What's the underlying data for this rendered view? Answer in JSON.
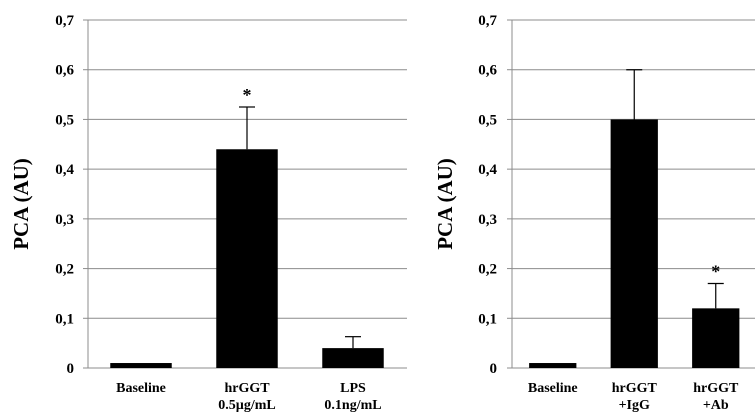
{
  "chart_data": [
    {
      "type": "bar",
      "ylabel": "PCA (AU)",
      "ylim": [
        0,
        0.7
      ],
      "yticks": [
        "0",
        "0,1",
        "0,2",
        "0,3",
        "0,4",
        "0,5",
        "0,6",
        "0,7"
      ],
      "grid": true,
      "categories": [
        [
          "Baseline"
        ],
        [
          "hrGGT",
          "0.5µg/mL"
        ],
        [
          "LPS",
          "0.1ng/mL"
        ]
      ],
      "values": [
        0.01,
        0.44,
        0.04
      ],
      "errors": [
        0,
        0.085,
        0.023
      ],
      "annotations": [
        "",
        "*",
        ""
      ],
      "bar_color": "#000000"
    },
    {
      "type": "bar",
      "ylabel": "PCA (AU)",
      "ylim": [
        0,
        0.7
      ],
      "yticks": [
        "0",
        "0,1",
        "0,2",
        "0,3",
        "0,4",
        "0,5",
        "0,6",
        "0,7"
      ],
      "grid": true,
      "categories": [
        [
          "Baseline"
        ],
        [
          "hrGGT",
          "+IgG"
        ],
        [
          "hrGGT",
          "+Ab"
        ]
      ],
      "values": [
        0.01,
        0.5,
        0.12
      ],
      "errors": [
        0,
        0.1,
        0.05
      ],
      "annotations": [
        "",
        "",
        "*"
      ],
      "bar_color": "#000000"
    }
  ]
}
